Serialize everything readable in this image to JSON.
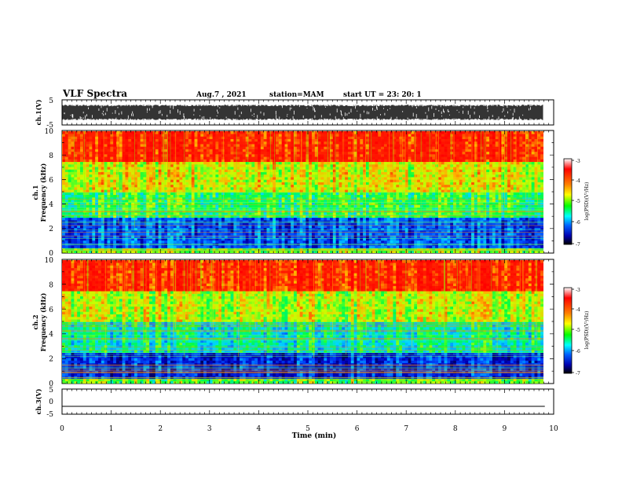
{
  "header": {
    "title": "VLF Spectra",
    "date": "Aug.7 , 2021",
    "station": "station=MAM",
    "start": "start UT = 23: 20: 1"
  },
  "panels": {
    "ch1_wave": {
      "ylabel": "ch.1(V)",
      "ticks": [
        "5",
        "-5"
      ]
    },
    "ch1_spec": {
      "ylabel_top": "ch.1",
      "ylabel": "Frequency (kHz)"
    },
    "ch2_spec": {
      "ylabel_top": "ch.2",
      "ylabel": "Frequency (kHz)"
    },
    "ch3_wave": {
      "ylabel": "ch.3(V)",
      "ticks": [
        "5",
        "0",
        "-5"
      ]
    }
  },
  "freq_ticks": [
    "0",
    "2",
    "4",
    "6",
    "8",
    "10"
  ],
  "colorbar": {
    "label": "log(PSD)(V²/Hz)",
    "ticks": [
      "-3",
      "-4",
      "-5",
      "-6",
      "-7"
    ],
    "colors": [
      "#ffffff",
      "#ff0000",
      "#ff8000",
      "#ffff00",
      "#00ff00",
      "#00ffff",
      "#0060ff",
      "#0000b0",
      "#000000"
    ]
  },
  "time_axis": {
    "label": "Time (min)",
    "ticks": [
      "0",
      "1",
      "2",
      "3",
      "4",
      "5",
      "6",
      "7",
      "8",
      "9",
      "10"
    ]
  },
  "chart_data": [
    {
      "type": "line",
      "panel": "ch.1(V)",
      "xlabel": "",
      "ylabel": "ch.1(V)",
      "xlim": [
        0,
        10
      ],
      "ylim": [
        -5,
        5
      ],
      "description_values": {
        "waveform_amplitude_range": [
          -3,
          3
        ]
      }
    },
    {
      "type": "heatmap",
      "panel": "ch.1",
      "xlabel": "",
      "ylabel": "Frequency (kHz)",
      "xlim": [
        0,
        9.82
      ],
      "ylim": [
        0,
        10
      ],
      "colorbar_range": [
        -7,
        -3
      ],
      "band_levels": [
        {
          "freq_range": [
            0,
            0.5
          ],
          "log_psd": -4.8
        },
        {
          "freq_range": [
            0.5,
            3
          ],
          "log_psd": -6.2
        },
        {
          "freq_range": [
            3,
            5
          ],
          "log_psd": -5.1
        },
        {
          "freq_range": [
            5,
            7.5
          ],
          "log_psd": -4.5
        },
        {
          "freq_range": [
            7.5,
            10
          ],
          "log_psd": -3.6
        }
      ]
    },
    {
      "type": "heatmap",
      "panel": "ch.2",
      "xlabel": "",
      "ylabel": "Frequency (kHz)",
      "xlim": [
        0,
        9.82
      ],
      "ylim": [
        0,
        10
      ],
      "colorbar_range": [
        -7,
        -3
      ],
      "band_levels": [
        {
          "freq_range": [
            0,
            0.5
          ],
          "log_psd": -4.9
        },
        {
          "freq_range": [
            0.5,
            2.5
          ],
          "log_psd": -6.4
        },
        {
          "freq_range": [
            2.5,
            5
          ],
          "log_psd": -5.4
        },
        {
          "freq_range": [
            5,
            7.5
          ],
          "log_psd": -4.6
        },
        {
          "freq_range": [
            7.5,
            10
          ],
          "log_psd": -3.6
        }
      ]
    },
    {
      "type": "line",
      "panel": "ch.3(V)",
      "xlabel": "Time (min)",
      "ylabel": "ch.3(V)",
      "xlim": [
        0,
        10
      ],
      "ylim": [
        -5,
        5
      ],
      "x": [
        0,
        9.82
      ],
      "y": [
        -2,
        -2
      ]
    }
  ]
}
